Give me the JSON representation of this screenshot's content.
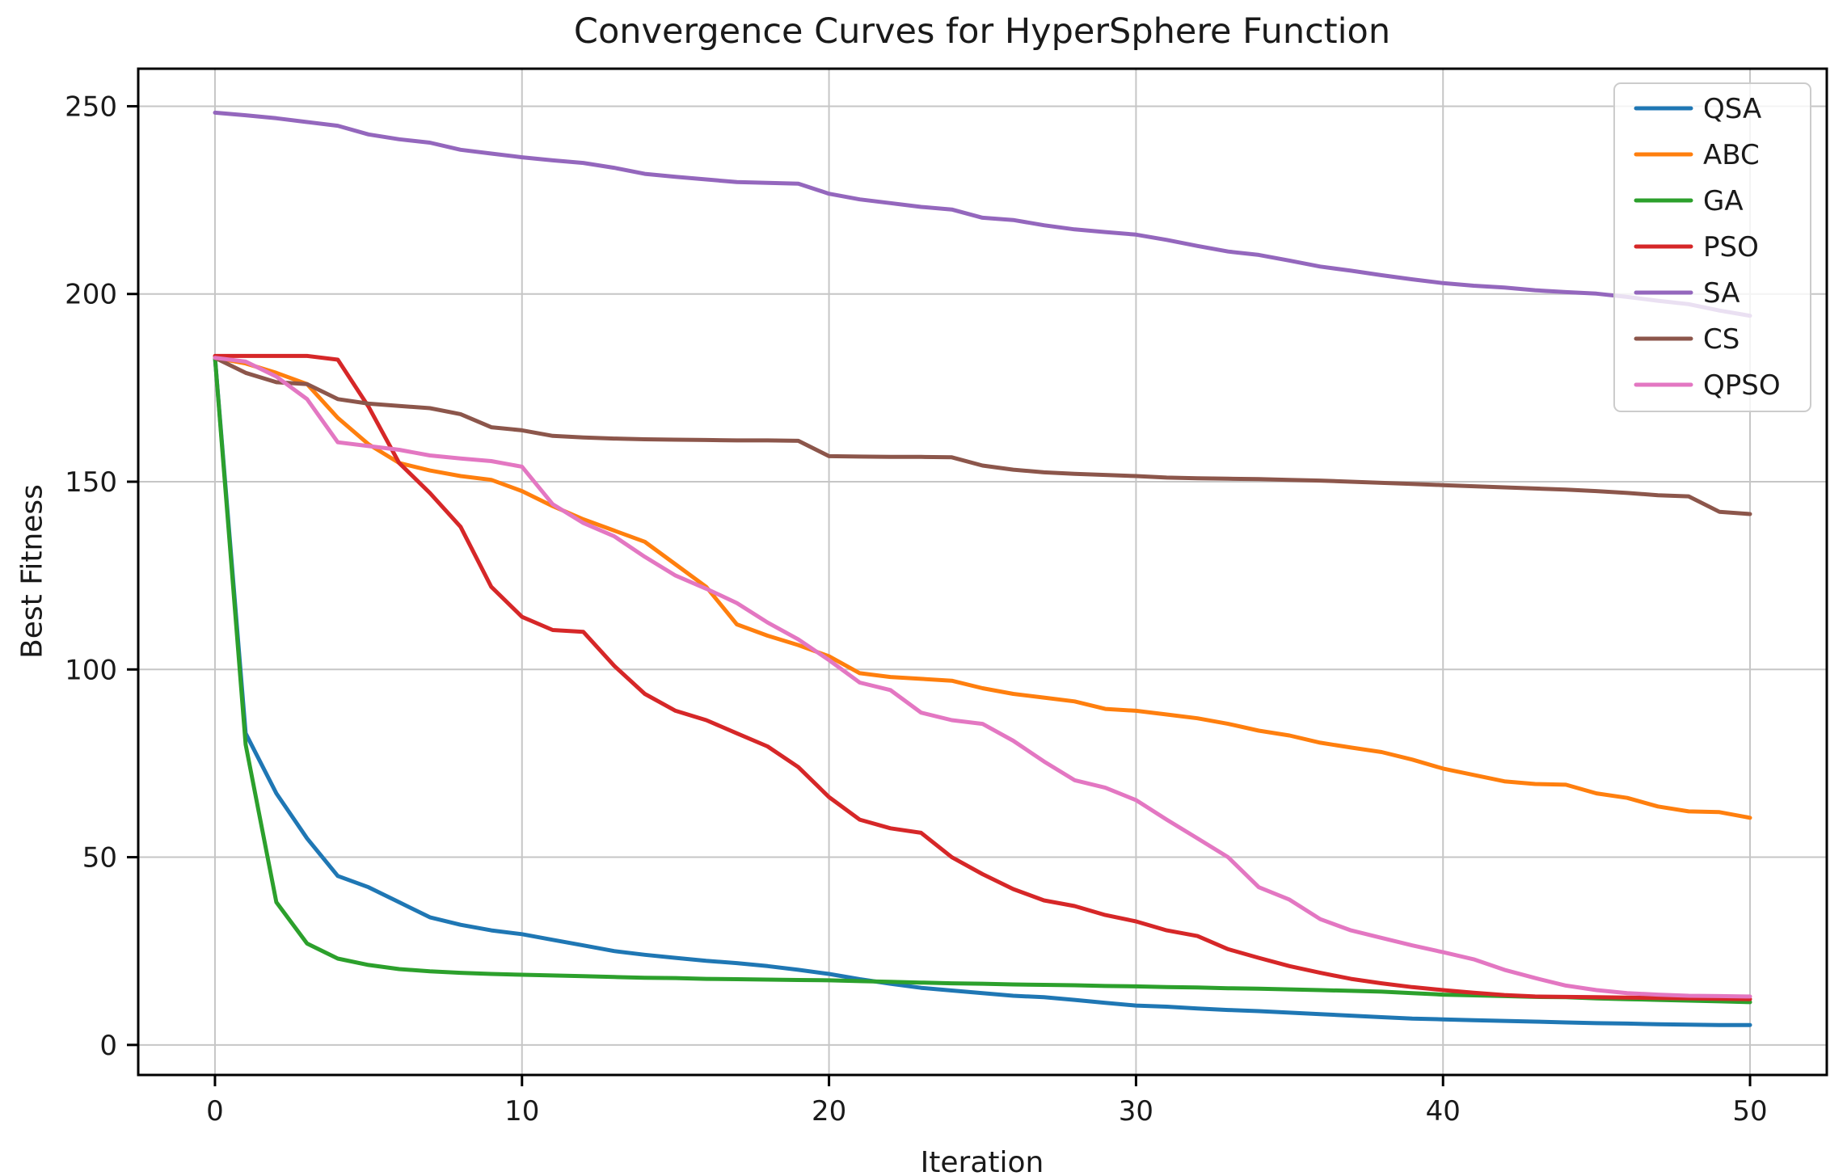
{
  "chart_data": {
    "type": "line",
    "title": "Convergence Curves for HyperSphere Function",
    "xlabel": "Iteration",
    "ylabel": "Best Fitness",
    "x_range": [
      0,
      50
    ],
    "xlim": [
      -2.5,
      52.5
    ],
    "ylim": [
      -8,
      260
    ],
    "xticks": [
      0,
      10,
      20,
      30,
      40,
      50
    ],
    "yticks": [
      0,
      50,
      100,
      150,
      200,
      250
    ],
    "grid": true,
    "grid_color": "#c6c6c6",
    "legend_position": "upper right",
    "series": [
      {
        "name": "QSA",
        "color": "#1f77b4",
        "values": [
          183,
          83,
          67,
          55,
          45,
          42,
          38,
          34,
          32,
          30.5,
          29.5,
          28,
          26.5,
          25,
          24,
          23.2,
          22.4,
          21.8,
          21,
          20,
          18.9,
          17.5,
          16.3,
          15.2,
          14.5,
          13.8,
          13.1,
          12.7,
          12,
          11.2,
          10.5,
          10.2,
          9.7,
          9.3,
          9,
          8.6,
          8.2,
          7.8,
          7.4,
          7,
          6.8,
          6.6,
          6.4,
          6.2,
          6,
          5.8,
          5.7,
          5.5,
          5.4,
          5.3,
          5.3
        ]
      },
      {
        "name": "ABC",
        "color": "#ff7f0e",
        "values": [
          183,
          181.5,
          179,
          176,
          167,
          160,
          155,
          153,
          151.5,
          150.5,
          147.5,
          143.5,
          140,
          137,
          134,
          128,
          122,
          112,
          109,
          106.5,
          103.5,
          99,
          98,
          97.5,
          97,
          95,
          93.5,
          92.5,
          91.5,
          89.5,
          89,
          88,
          87,
          85.5,
          83.7,
          82.4,
          80.5,
          79.2,
          78,
          76,
          73.6,
          71.9,
          70.2,
          69.5,
          69.3,
          67,
          65.8,
          63.5,
          62.2,
          62,
          60.5
        ]
      },
      {
        "name": "GA",
        "color": "#2ca02c",
        "values": [
          183,
          80,
          38,
          27,
          23,
          21.3,
          20.2,
          19.6,
          19.2,
          18.9,
          18.7,
          18.5,
          18.3,
          18.1,
          17.9,
          17.8,
          17.6,
          17.5,
          17.4,
          17.3,
          17.2,
          17,
          16.8,
          16.6,
          16.4,
          16.3,
          16.1,
          16,
          15.9,
          15.7,
          15.6,
          15.4,
          15.3,
          15.1,
          15,
          14.8,
          14.6,
          14.4,
          14.2,
          13.8,
          13.4,
          13.2,
          13,
          12.8,
          12.7,
          12.4,
          12.2,
          12,
          11.8,
          11.6,
          11.4
        ]
      },
      {
        "name": "PSO",
        "color": "#d62728",
        "values": [
          183.5,
          183.5,
          183.5,
          183.5,
          182.5,
          170,
          155,
          147,
          138,
          122,
          114,
          110.5,
          110,
          101,
          93.5,
          89,
          86.5,
          83,
          79.5,
          74,
          66,
          60,
          57.7,
          56.5,
          50,
          45.5,
          41.5,
          38.5,
          37,
          34.6,
          32.9,
          30.5,
          29,
          25.5,
          23.2,
          21,
          19.2,
          17.6,
          16.4,
          15.4,
          14.6,
          13.9,
          13.3,
          12.9,
          12.8,
          12.7,
          12.6,
          12.5,
          12.4,
          12.3,
          12.2
        ]
      },
      {
        "name": "SA",
        "color": "#9467bd",
        "values": [
          248.3,
          247.6,
          246.8,
          245.8,
          244.8,
          242.5,
          241.2,
          240.3,
          238.4,
          237.4,
          236.4,
          235.6,
          234.9,
          233.6,
          232,
          231.2,
          230.5,
          229.8,
          229.6,
          229.4,
          226.7,
          225.2,
          224.2,
          223.2,
          222.5,
          220.3,
          219.7,
          218.3,
          217.2,
          216.5,
          215.8,
          214.4,
          212.8,
          211.3,
          210.4,
          208.9,
          207.3,
          206.2,
          205,
          203.9,
          202.9,
          202.2,
          201.7,
          201,
          200.5,
          200.1,
          199.2,
          198.2,
          197.3,
          195.6,
          194.2
        ]
      },
      {
        "name": "CS",
        "color": "#8c564b",
        "values": [
          183,
          179,
          176.5,
          176,
          172,
          170.8,
          170.2,
          169.6,
          168,
          164.5,
          163.7,
          162.2,
          161.8,
          161.5,
          161.3,
          161.2,
          161.1,
          161,
          161,
          160.9,
          156.8,
          156.7,
          156.6,
          156.6,
          156.5,
          154.3,
          153.2,
          152.5,
          152.1,
          151.8,
          151.5,
          151.1,
          150.9,
          150.8,
          150.7,
          150.5,
          150.3,
          150,
          149.7,
          149.4,
          149.1,
          148.8,
          148.5,
          148.2,
          147.9,
          147.5,
          147,
          146.4,
          146.1,
          142,
          141.4
        ]
      },
      {
        "name": "QPSO",
        "color": "#e377c2",
        "values": [
          183,
          182,
          178,
          172,
          160.5,
          159.5,
          158.5,
          157,
          156.2,
          155.5,
          154,
          144,
          139,
          135.5,
          130,
          125,
          121.5,
          117.7,
          112.5,
          108,
          102.5,
          96.5,
          94.5,
          88.5,
          86.5,
          85.5,
          81,
          75.5,
          70.5,
          68.5,
          65.2,
          60,
          55,
          50,
          42,
          38.7,
          33.5,
          30.5,
          28.5,
          26.5,
          24.7,
          22.8,
          20,
          17.8,
          15.8,
          14.6,
          13.8,
          13.4,
          13.1,
          13,
          12.9
        ]
      }
    ]
  }
}
